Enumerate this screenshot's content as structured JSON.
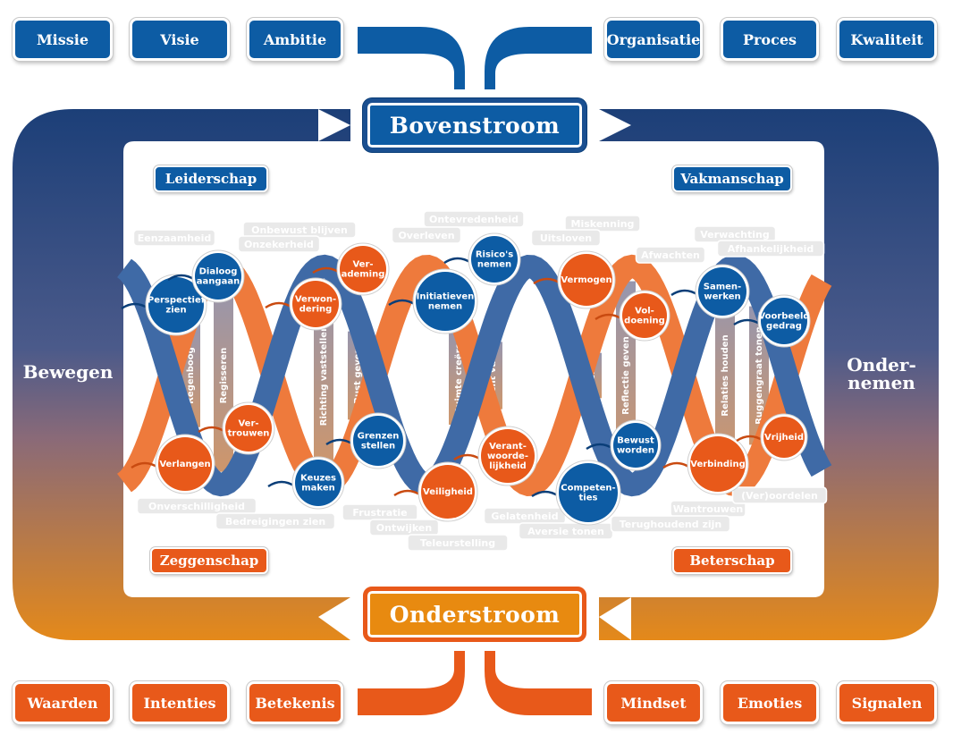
{
  "top_left_items": [
    "Missie",
    "Visie",
    "Ambitie"
  ],
  "top_right_items": [
    "Organisatie",
    "Proces",
    "Kwaliteit"
  ],
  "bottom_left_items": [
    "Waarden",
    "Intenties",
    "Betekenis"
  ],
  "bottom_right_items": [
    "Mindset",
    "Emoties",
    "Signalen"
  ],
  "bovenstroom": "Bovenstroom",
  "onderstroom": "Onderstroom",
  "left_label": "Bewegen",
  "right_label": [
    "Onder-",
    "nemen"
  ],
  "corners": {
    "leiderschap": "Leiderschap",
    "vakmanschap": "Vakmanschap",
    "zeggenschap": "Zeggenschap",
    "beterschap": "Beterschap"
  },
  "nodes": [
    {
      "lines": [
        "Perspectief",
        "zien"
      ],
      "color": "blue"
    },
    {
      "lines": [
        "Dialoog",
        "aangaan"
      ],
      "color": "blue"
    },
    {
      "lines": [
        "Verlangen"
      ],
      "color": "orange"
    },
    {
      "lines": [
        "Ver-",
        "trouwen"
      ],
      "color": "orange"
    },
    {
      "lines": [
        "Verwon-",
        "dering"
      ],
      "color": "orange"
    },
    {
      "lines": [
        "Ver-",
        "ademing"
      ],
      "color": "orange"
    },
    {
      "lines": [
        "Keuzes",
        "maken"
      ],
      "color": "blue"
    },
    {
      "lines": [
        "Grenzen",
        "stellen"
      ],
      "color": "blue"
    },
    {
      "lines": [
        "Initiatieven",
        "nemen"
      ],
      "color": "blue"
    },
    {
      "lines": [
        "Risico's",
        "nemen"
      ],
      "color": "blue"
    },
    {
      "lines": [
        "Veiligheid"
      ],
      "color": "orange"
    },
    {
      "lines": [
        "Verant-",
        "woorde-",
        "lijkheid"
      ],
      "color": "orange"
    },
    {
      "lines": [
        "Vermogen"
      ],
      "color": "orange"
    },
    {
      "lines": [
        "Vol-",
        "doening"
      ],
      "color": "orange"
    },
    {
      "lines": [
        "Competen-",
        "ties"
      ],
      "color": "blue"
    },
    {
      "lines": [
        "Bewust",
        "worden"
      ],
      "color": "blue"
    },
    {
      "lines": [
        "Samen-",
        "werken"
      ],
      "color": "blue"
    },
    {
      "lines": [
        "Voorbeeld",
        "gedrag"
      ],
      "color": "blue"
    },
    {
      "lines": [
        "Verbinding"
      ],
      "color": "orange"
    },
    {
      "lines": [
        "Vrijheid"
      ],
      "color": "orange"
    }
  ],
  "rungs": [
    "Regenboog",
    "Regisseren",
    "Richting vaststellen",
    "Rust geven",
    "Ruimte creëren",
    "Rendement vaststellen",
    "Resultaten boeken",
    "Reflectie geven",
    "Relaties houden",
    "Ruggengraat tonen"
  ],
  "ghost_labels": [
    "Eenzaamheid",
    "Onbewust blijven",
    "Onzekerheid",
    "Ontevredenheid",
    "Overleven",
    "Miskenning",
    "Uitsloven",
    "Afwachten",
    "Verwachting",
    "Afhankelijkheid",
    "Onverschilligheid",
    "Bedreigingen zien",
    "Frustratie",
    "Ontwijken",
    "Teleurstelling",
    "Gelatenheid",
    "Aversie tonen",
    "Wantrouwen",
    "Terughoudend zijn",
    "(Ver)oordelen"
  ],
  "colors": {
    "blue": "#0d5ca4",
    "orange": "#e8591a",
    "frame_top": "#1c3f78",
    "frame_bottom": "#e08a1f",
    "strand_blue": "#3f6aa6",
    "strand_orange": "#ee7a3c"
  }
}
